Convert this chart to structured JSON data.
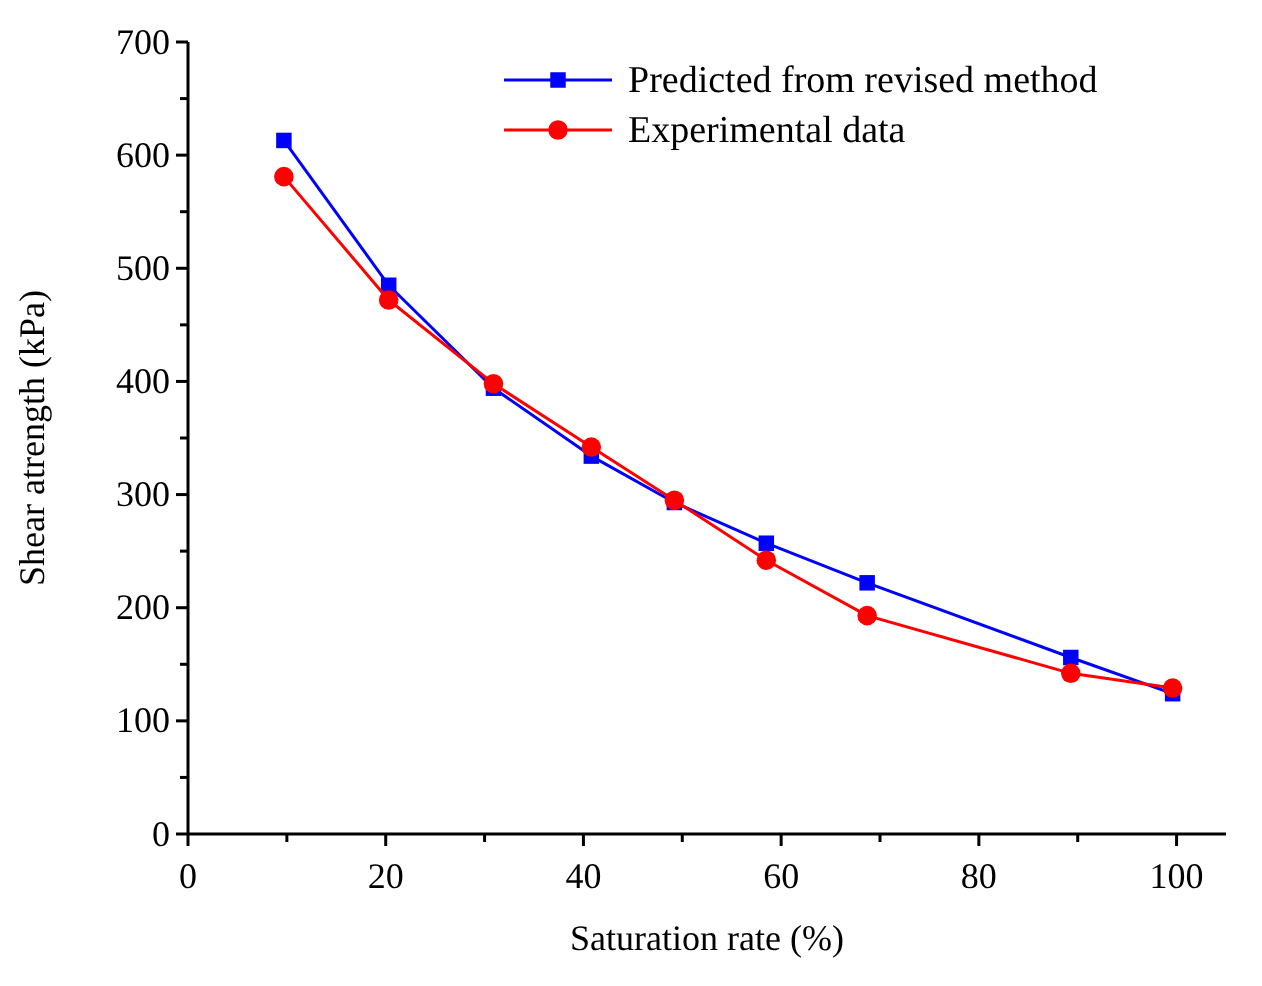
{
  "chart_data": {
    "type": "line",
    "xlabel": "Saturation rate (%)",
    "ylabel": "Shear atrength (kPa)",
    "x": [
      9.7,
      20.3,
      30.9,
      40.8,
      49.2,
      58.5,
      68.7,
      89.3,
      99.6
    ],
    "series": [
      {
        "name": "Predicted from revised method",
        "color": "#0000ff",
        "marker": "square",
        "values": [
          613,
          485,
          394,
          334,
          293,
          257,
          222,
          156,
          124
        ]
      },
      {
        "name": "Experimental data",
        "color": "#ff0000",
        "marker": "circle",
        "values": [
          581,
          472,
          398,
          342,
          295,
          242,
          193,
          142,
          129
        ]
      }
    ],
    "xlim": [
      0,
      105
    ],
    "xticks": [
      0,
      20,
      40,
      60,
      80,
      100
    ],
    "ylim": [
      0,
      700
    ],
    "yticks": [
      0,
      100,
      200,
      300,
      400,
      500,
      600,
      700
    ],
    "grid": false,
    "legend": "top right",
    "line_style": "solid"
  }
}
